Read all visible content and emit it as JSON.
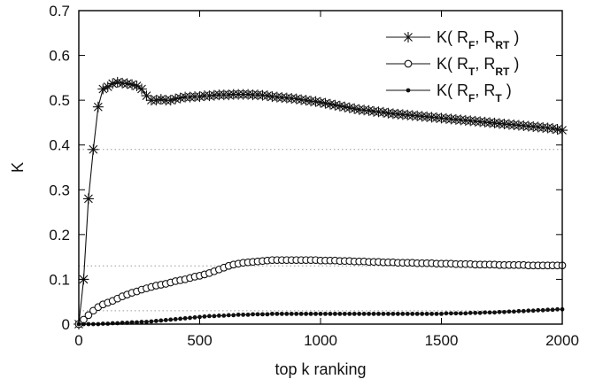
{
  "chart_data": {
    "type": "line",
    "title": "",
    "xlabel": "top k ranking",
    "ylabel": "K",
    "xlim": [
      0,
      2000
    ],
    "ylim": [
      0,
      0.7
    ],
    "xticks": [
      0,
      500,
      1000,
      1500,
      2000
    ],
    "xtick_labels": [
      "0",
      "500",
      "1000",
      "1500",
      "2000"
    ],
    "yticks": [
      0,
      0.1,
      0.2,
      0.3,
      0.4,
      0.5,
      0.6,
      0.7
    ],
    "ytick_labels": [
      "0",
      "0.1",
      "0.2",
      "0.3",
      "0.4",
      "0.5",
      "0.6",
      "0.7"
    ],
    "grid": false,
    "legend_position": "top-right",
    "series": [
      {
        "name": "K( R_F, R_RT )",
        "legend": {
          "k": "K(",
          "a": "R",
          "a_sub": "F",
          "sep": ", ",
          "b": "R",
          "b_sub": "RT",
          "end": ")"
        },
        "marker": "star",
        "reference_level": 0.39,
        "x": [
          0,
          20,
          40,
          60,
          80,
          100,
          120,
          140,
          160,
          180,
          200,
          220,
          240,
          260,
          280,
          300,
          320,
          340,
          360,
          380,
          400,
          420,
          440,
          460,
          480,
          500,
          520,
          540,
          560,
          580,
          600,
          620,
          640,
          660,
          680,
          700,
          720,
          740,
          760,
          780,
          800,
          820,
          840,
          860,
          880,
          900,
          920,
          940,
          960,
          980,
          1000,
          1020,
          1040,
          1060,
          1080,
          1100,
          1120,
          1140,
          1160,
          1180,
          1200,
          1220,
          1240,
          1260,
          1280,
          1300,
          1320,
          1340,
          1360,
          1380,
          1400,
          1420,
          1440,
          1460,
          1480,
          1500,
          1520,
          1540,
          1560,
          1580,
          1600,
          1620,
          1640,
          1660,
          1680,
          1700,
          1720,
          1740,
          1760,
          1780,
          1800,
          1820,
          1840,
          1860,
          1880,
          1900,
          1920,
          1940,
          1960,
          1980,
          2000
        ],
        "y": [
          0.0,
          0.1,
          0.28,
          0.39,
          0.485,
          0.525,
          0.53,
          0.537,
          0.54,
          0.538,
          0.537,
          0.535,
          0.532,
          0.525,
          0.51,
          0.5,
          0.5,
          0.502,
          0.5,
          0.5,
          0.503,
          0.505,
          0.507,
          0.507,
          0.508,
          0.508,
          0.51,
          0.51,
          0.511,
          0.512,
          0.512,
          0.512,
          0.513,
          0.513,
          0.513,
          0.513,
          0.512,
          0.512,
          0.511,
          0.51,
          0.508,
          0.507,
          0.506,
          0.505,
          0.504,
          0.503,
          0.501,
          0.5,
          0.498,
          0.497,
          0.495,
          0.493,
          0.491,
          0.489,
          0.487,
          0.485,
          0.483,
          0.481,
          0.479,
          0.478,
          0.477,
          0.475,
          0.474,
          0.473,
          0.471,
          0.47,
          0.469,
          0.468,
          0.467,
          0.466,
          0.465,
          0.464,
          0.463,
          0.462,
          0.461,
          0.46,
          0.459,
          0.458,
          0.457,
          0.456,
          0.455,
          0.454,
          0.453,
          0.452,
          0.451,
          0.45,
          0.449,
          0.448,
          0.447,
          0.446,
          0.445,
          0.444,
          0.443,
          0.442,
          0.441,
          0.44,
          0.439,
          0.438,
          0.437,
          0.435,
          0.433
        ]
      },
      {
        "name": "K( R_T, R_RT )",
        "legend": {
          "k": "K(",
          "a": "R",
          "a_sub": "T",
          "sep": ", ",
          "b": "R",
          "b_sub": "RT",
          "end": ")"
        },
        "marker": "open-circle",
        "reference_level": 0.13,
        "x": [
          0,
          20,
          40,
          60,
          80,
          100,
          120,
          140,
          160,
          180,
          200,
          220,
          240,
          260,
          280,
          300,
          320,
          340,
          360,
          380,
          400,
          420,
          440,
          460,
          480,
          500,
          520,
          540,
          560,
          580,
          600,
          620,
          640,
          660,
          680,
          700,
          720,
          740,
          760,
          780,
          800,
          820,
          840,
          860,
          880,
          900,
          920,
          940,
          960,
          980,
          1000,
          1020,
          1040,
          1060,
          1080,
          1100,
          1120,
          1140,
          1160,
          1180,
          1200,
          1220,
          1240,
          1260,
          1280,
          1300,
          1320,
          1340,
          1360,
          1380,
          1400,
          1420,
          1440,
          1460,
          1480,
          1500,
          1520,
          1540,
          1560,
          1580,
          1600,
          1620,
          1640,
          1660,
          1680,
          1700,
          1720,
          1740,
          1760,
          1780,
          1800,
          1820,
          1840,
          1860,
          1880,
          1900,
          1920,
          1940,
          1960,
          1980,
          2000
        ],
        "y": [
          0.0,
          0.01,
          0.02,
          0.03,
          0.038,
          0.044,
          0.048,
          0.052,
          0.057,
          0.062,
          0.066,
          0.07,
          0.073,
          0.077,
          0.08,
          0.083,
          0.086,
          0.088,
          0.09,
          0.093,
          0.096,
          0.098,
          0.1,
          0.103,
          0.106,
          0.108,
          0.111,
          0.114,
          0.118,
          0.122,
          0.126,
          0.13,
          0.133,
          0.135,
          0.137,
          0.138,
          0.139,
          0.14,
          0.141,
          0.142,
          0.143,
          0.143,
          0.143,
          0.143,
          0.143,
          0.143,
          0.143,
          0.143,
          0.143,
          0.143,
          0.142,
          0.142,
          0.142,
          0.142,
          0.141,
          0.141,
          0.141,
          0.14,
          0.14,
          0.14,
          0.139,
          0.139,
          0.139,
          0.138,
          0.138,
          0.138,
          0.137,
          0.137,
          0.137,
          0.137,
          0.136,
          0.136,
          0.136,
          0.136,
          0.135,
          0.135,
          0.135,
          0.135,
          0.134,
          0.134,
          0.134,
          0.134,
          0.133,
          0.133,
          0.133,
          0.133,
          0.133,
          0.132,
          0.132,
          0.132,
          0.132,
          0.132,
          0.132,
          0.131,
          0.131,
          0.131,
          0.131,
          0.131,
          0.131,
          0.131,
          0.131
        ]
      },
      {
        "name": "K( R_F, R_T )",
        "legend": {
          "k": "K(",
          "a": "R",
          "a_sub": "F",
          "sep": ", ",
          "b": "R",
          "b_sub": "T",
          "end": ")"
        },
        "marker": "filled-dot",
        "reference_level": 0.03,
        "x": [
          0,
          20,
          40,
          60,
          80,
          100,
          120,
          140,
          160,
          180,
          200,
          220,
          240,
          260,
          280,
          300,
          320,
          340,
          360,
          380,
          400,
          420,
          440,
          460,
          480,
          500,
          520,
          540,
          560,
          580,
          600,
          620,
          640,
          660,
          680,
          700,
          720,
          740,
          760,
          780,
          800,
          820,
          840,
          860,
          880,
          900,
          920,
          940,
          960,
          980,
          1000,
          1020,
          1040,
          1060,
          1080,
          1100,
          1120,
          1140,
          1160,
          1180,
          1200,
          1220,
          1240,
          1260,
          1280,
          1300,
          1320,
          1340,
          1360,
          1380,
          1400,
          1420,
          1440,
          1460,
          1480,
          1500,
          1520,
          1540,
          1560,
          1580,
          1600,
          1620,
          1640,
          1660,
          1680,
          1700,
          1720,
          1740,
          1760,
          1780,
          1800,
          1820,
          1840,
          1860,
          1880,
          1900,
          1920,
          1940,
          1960,
          1980,
          2000
        ],
        "y": [
          0.0,
          0.0,
          0.0,
          0.0,
          0.0,
          0.001,
          0.001,
          0.002,
          0.002,
          0.003,
          0.003,
          0.004,
          0.004,
          0.005,
          0.005,
          0.006,
          0.007,
          0.008,
          0.009,
          0.01,
          0.011,
          0.012,
          0.013,
          0.014,
          0.015,
          0.016,
          0.017,
          0.018,
          0.018,
          0.019,
          0.019,
          0.02,
          0.02,
          0.021,
          0.021,
          0.021,
          0.022,
          0.022,
          0.022,
          0.022,
          0.023,
          0.023,
          0.023,
          0.023,
          0.023,
          0.023,
          0.023,
          0.023,
          0.023,
          0.023,
          0.023,
          0.023,
          0.023,
          0.023,
          0.023,
          0.023,
          0.023,
          0.023,
          0.023,
          0.023,
          0.023,
          0.023,
          0.023,
          0.023,
          0.023,
          0.023,
          0.023,
          0.023,
          0.023,
          0.023,
          0.023,
          0.023,
          0.023,
          0.023,
          0.023,
          0.023,
          0.024,
          0.024,
          0.024,
          0.024,
          0.024,
          0.025,
          0.025,
          0.025,
          0.026,
          0.026,
          0.026,
          0.027,
          0.027,
          0.028,
          0.028,
          0.029,
          0.029,
          0.03,
          0.03,
          0.031,
          0.031,
          0.032,
          0.032,
          0.033,
          0.033
        ]
      }
    ]
  }
}
